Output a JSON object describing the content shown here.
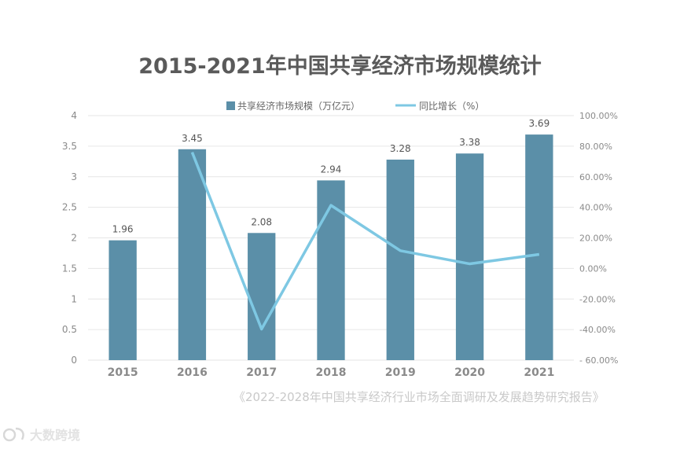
{
  "chart_data": {
    "type": "bar",
    "title": "2015-2021年中国共享经济市场规模统计",
    "categories": [
      "2015",
      "2016",
      "2017",
      "2018",
      "2019",
      "2020",
      "2021"
    ],
    "series": [
      {
        "name": "共享经济市场规模（万亿元）",
        "type": "bar",
        "axis": "left",
        "values": [
          1.96,
          3.45,
          2.08,
          2.94,
          3.28,
          3.38,
          3.69
        ],
        "data_labels": [
          "1.96",
          "3.45",
          "2.08",
          "2.94",
          "3.28",
          "3.38",
          "3.69"
        ],
        "color": "#5b8fa8"
      },
      {
        "name": "同比增长（%）",
        "type": "line",
        "axis": "right",
        "values": [
          null,
          76.0,
          -39.7,
          41.3,
          11.6,
          3.0,
          9.2
        ],
        "color": "#7ec8e3"
      }
    ],
    "left_axis": {
      "ylim": [
        0,
        4
      ],
      "ticks": [
        "0",
        "0.5",
        "1",
        "1.5",
        "2",
        "2.5",
        "3",
        "3.5",
        "4"
      ]
    },
    "right_axis": {
      "ylim": [
        -60,
        100
      ],
      "ticks": [
        "- 60.00%",
        "-40.00%",
        "-20.00%",
        "0.00%",
        "20.00%",
        "40.00%",
        "60.00%",
        "80.00%",
        "100.00%"
      ]
    },
    "grid": true,
    "legend_position": "top"
  },
  "source_note": "《2022-2028年中国共享经济行业市场全面调研及发展趋势研究报告》",
  "watermark": {
    "text": "大数跨境",
    "icon": "watermark-logo-icon"
  }
}
